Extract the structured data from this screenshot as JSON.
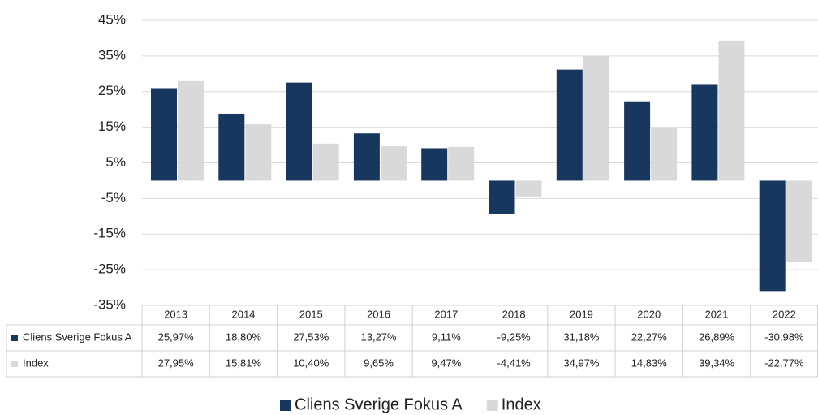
{
  "chart_data": {
    "type": "bar",
    "categories": [
      "2013",
      "2014",
      "2015",
      "2016",
      "2017",
      "2018",
      "2019",
      "2020",
      "2021",
      "2022"
    ],
    "series": [
      {
        "name": "Cliens Sverige Fokus A",
        "color": "#17375e",
        "values": [
          25.97,
          18.8,
          27.53,
          13.27,
          9.11,
          -9.25,
          31.18,
          22.27,
          26.89,
          -30.98
        ],
        "value_labels": [
          "25,97%",
          "18,80%",
          "27,53%",
          "13,27%",
          "9,11%",
          "-9,25%",
          "31,18%",
          "22,27%",
          "26,89%",
          "-30,98%"
        ]
      },
      {
        "name": "Index",
        "color": "#d9d9d9",
        "values": [
          27.95,
          15.81,
          10.4,
          9.65,
          9.47,
          -4.41,
          34.97,
          14.83,
          39.34,
          -22.77
        ],
        "value_labels": [
          "27,95%",
          "15,81%",
          "10,40%",
          "9,65%",
          "9,47%",
          "-4,41%",
          "34,97%",
          "14,83%",
          "39,34%",
          "-22,77%"
        ]
      }
    ],
    "ylim": [
      -35,
      45
    ],
    "yticks": [
      {
        "value": 45,
        "label": "45%"
      },
      {
        "value": 35,
        "label": "35%"
      },
      {
        "value": 25,
        "label": "25%"
      },
      {
        "value": 15,
        "label": "15%"
      },
      {
        "value": 5,
        "label": "5%"
      },
      {
        "value": -5,
        "label": "-5%"
      },
      {
        "value": -15,
        "label": "-15%"
      },
      {
        "value": -25,
        "label": "-25%"
      },
      {
        "value": -35,
        "label": "-35%"
      }
    ],
    "grid": true,
    "legend": "bottom"
  }
}
